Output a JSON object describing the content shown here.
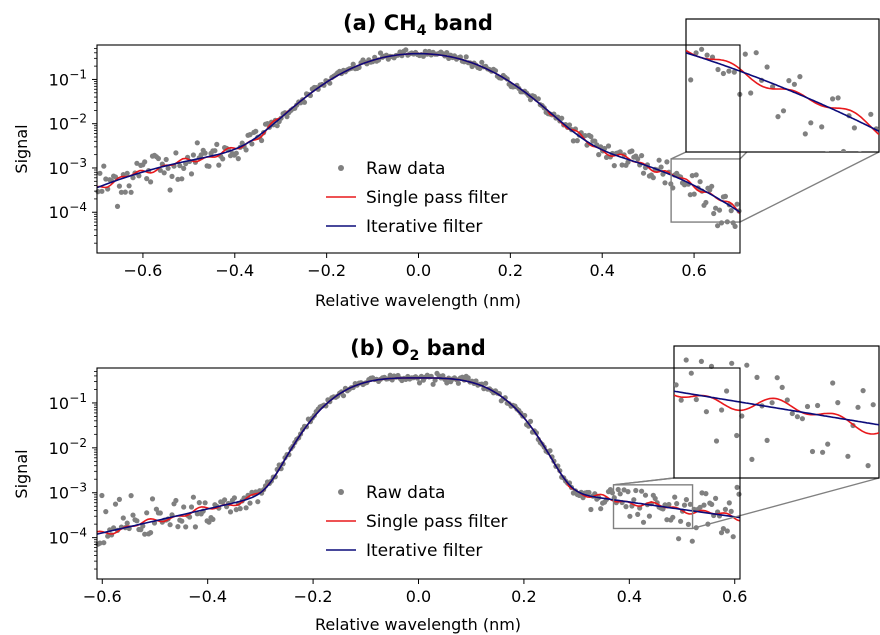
{
  "chart_data": [
    {
      "type": "scatter",
      "title": "(a) CH",
      "title_sub": "4",
      "title_rest": " band",
      "xlabel": "Relative wavelength (nm)",
      "ylabel": "Signal",
      "yscale": "log",
      "xlim": [
        -0.7,
        0.7
      ],
      "ylim": [
        1.2e-05,
        0.6
      ],
      "xticks": [
        -0.6,
        -0.4,
        -0.2,
        0.0,
        0.2,
        0.4,
        0.6
      ],
      "xtick_labels": [
        "−0.6",
        "−0.4",
        "−0.2",
        "0.0",
        "0.2",
        "0.4",
        "0.6"
      ],
      "yticks": [
        {
          "value": 0.1,
          "base": "10",
          "exp": "−1"
        },
        {
          "value": 0.01,
          "base": "10",
          "exp": "−2"
        },
        {
          "value": 0.001,
          "base": "10",
          "exp": "−3"
        },
        {
          "value": 0.0001,
          "base": "10",
          "exp": "−4"
        }
      ],
      "legend": [
        "Raw data",
        "Single pass filter",
        "Iterative filter"
      ],
      "series_colors": {
        "raw": "#808080",
        "single": "#e8191c",
        "iterative": "#0b0b7a"
      },
      "profile": {
        "peak": 0.38,
        "center": 0.0,
        "halfwidth": 0.245,
        "wing_left_at_edge": 0.00036,
        "wing_left_at_0_3": 0.0023,
        "wing_right_at_0_3": 0.0024,
        "wing_right_at_edge": 0.00017
      },
      "inset_range": {
        "x": [
          0.55,
          0.7
        ],
        "y": [
          6e-05,
          0.0016
        ]
      }
    },
    {
      "type": "scatter",
      "title": "(b) O",
      "title_sub": "2",
      "title_rest": " band",
      "xlabel": "Relative wavelength (nm)",
      "ylabel": "Signal",
      "yscale": "log",
      "xlim": [
        -0.61,
        0.61
      ],
      "ylim": [
        1.2e-05,
        0.6
      ],
      "xticks": [
        -0.6,
        -0.4,
        -0.2,
        0.0,
        0.2,
        0.4,
        0.6
      ],
      "xtick_labels": [
        "−0.6",
        "−0.4",
        "−0.2",
        "0.0",
        "0.2",
        "0.4",
        "0.6"
      ],
      "yticks": [
        {
          "value": 0.1,
          "base": "10",
          "exp": "−1"
        },
        {
          "value": 0.01,
          "base": "10",
          "exp": "−2"
        },
        {
          "value": 0.001,
          "base": "10",
          "exp": "−3"
        },
        {
          "value": 0.0001,
          "base": "10",
          "exp": "−4"
        }
      ],
      "legend": [
        "Raw data",
        "Single pass filter",
        "Iterative filter"
      ],
      "series_colors": {
        "raw": "#808080",
        "single": "#e8191c",
        "iterative": "#0b0b7a"
      },
      "profile": {
        "peak": 0.36,
        "center": 0.0,
        "halfwidth": 0.215,
        "wing_left_at_edge": 0.00012,
        "wing_left_at_0_25": 0.0011,
        "wing_right_at_0_25": 0.0011,
        "wing_right_at_edge": 0.00028
      },
      "inset_range": {
        "x": [
          0.37,
          0.52
        ],
        "y": [
          0.00016,
          0.0015
        ]
      }
    }
  ]
}
